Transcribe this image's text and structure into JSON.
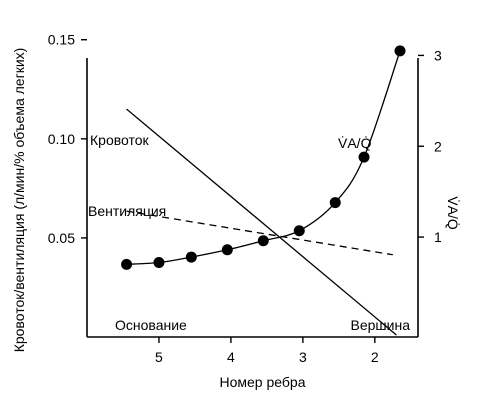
{
  "chart_data": {
    "type": "line",
    "xlabel": "Номер ребра",
    "ylabel_left": "Кровоток/вентиляция (л/мин/% объема легких)",
    "ylabel_right": "V̇A/Q̇",
    "x_ticks": [
      "5",
      "4",
      "3",
      "2"
    ],
    "x_tick_values": [
      5,
      4,
      3,
      2
    ],
    "xlim": [
      6.0,
      1.4
    ],
    "y_left_ticks": [
      "0.05",
      "0.10",
      "0.15"
    ],
    "y_left_tick_values": [
      0.05,
      0.1,
      0.15
    ],
    "ylim_left": [
      0.0,
      0.165
    ],
    "y_right_ticks": [
      "1",
      "2",
      "3"
    ],
    "y_right_tick_values": [
      1,
      2,
      3
    ],
    "ylim_right": [
      -0.1,
      3.5
    ],
    "end_labels": {
      "left": "Основание",
      "right": "Вершина"
    },
    "series": [
      {
        "name": "Кровоток",
        "axis": "left",
        "style": "solid",
        "x": [
          5.45,
          1.7
        ],
        "y": [
          0.115,
          0.001
        ]
      },
      {
        "name": "Вентиляция",
        "axis": "left",
        "style": "dashed",
        "x": [
          5.45,
          1.75
        ],
        "y": [
          0.0635,
          0.0415
        ]
      },
      {
        "name": "V̇A/Q̇",
        "axis": "right",
        "style": "solid-markers",
        "x": [
          5.45,
          5.0,
          4.55,
          4.05,
          3.55,
          3.05,
          2.55,
          2.15,
          1.65
        ],
        "y": [
          0.7,
          0.72,
          0.78,
          0.86,
          0.96,
          1.07,
          1.38,
          1.88,
          3.05
        ]
      }
    ]
  }
}
